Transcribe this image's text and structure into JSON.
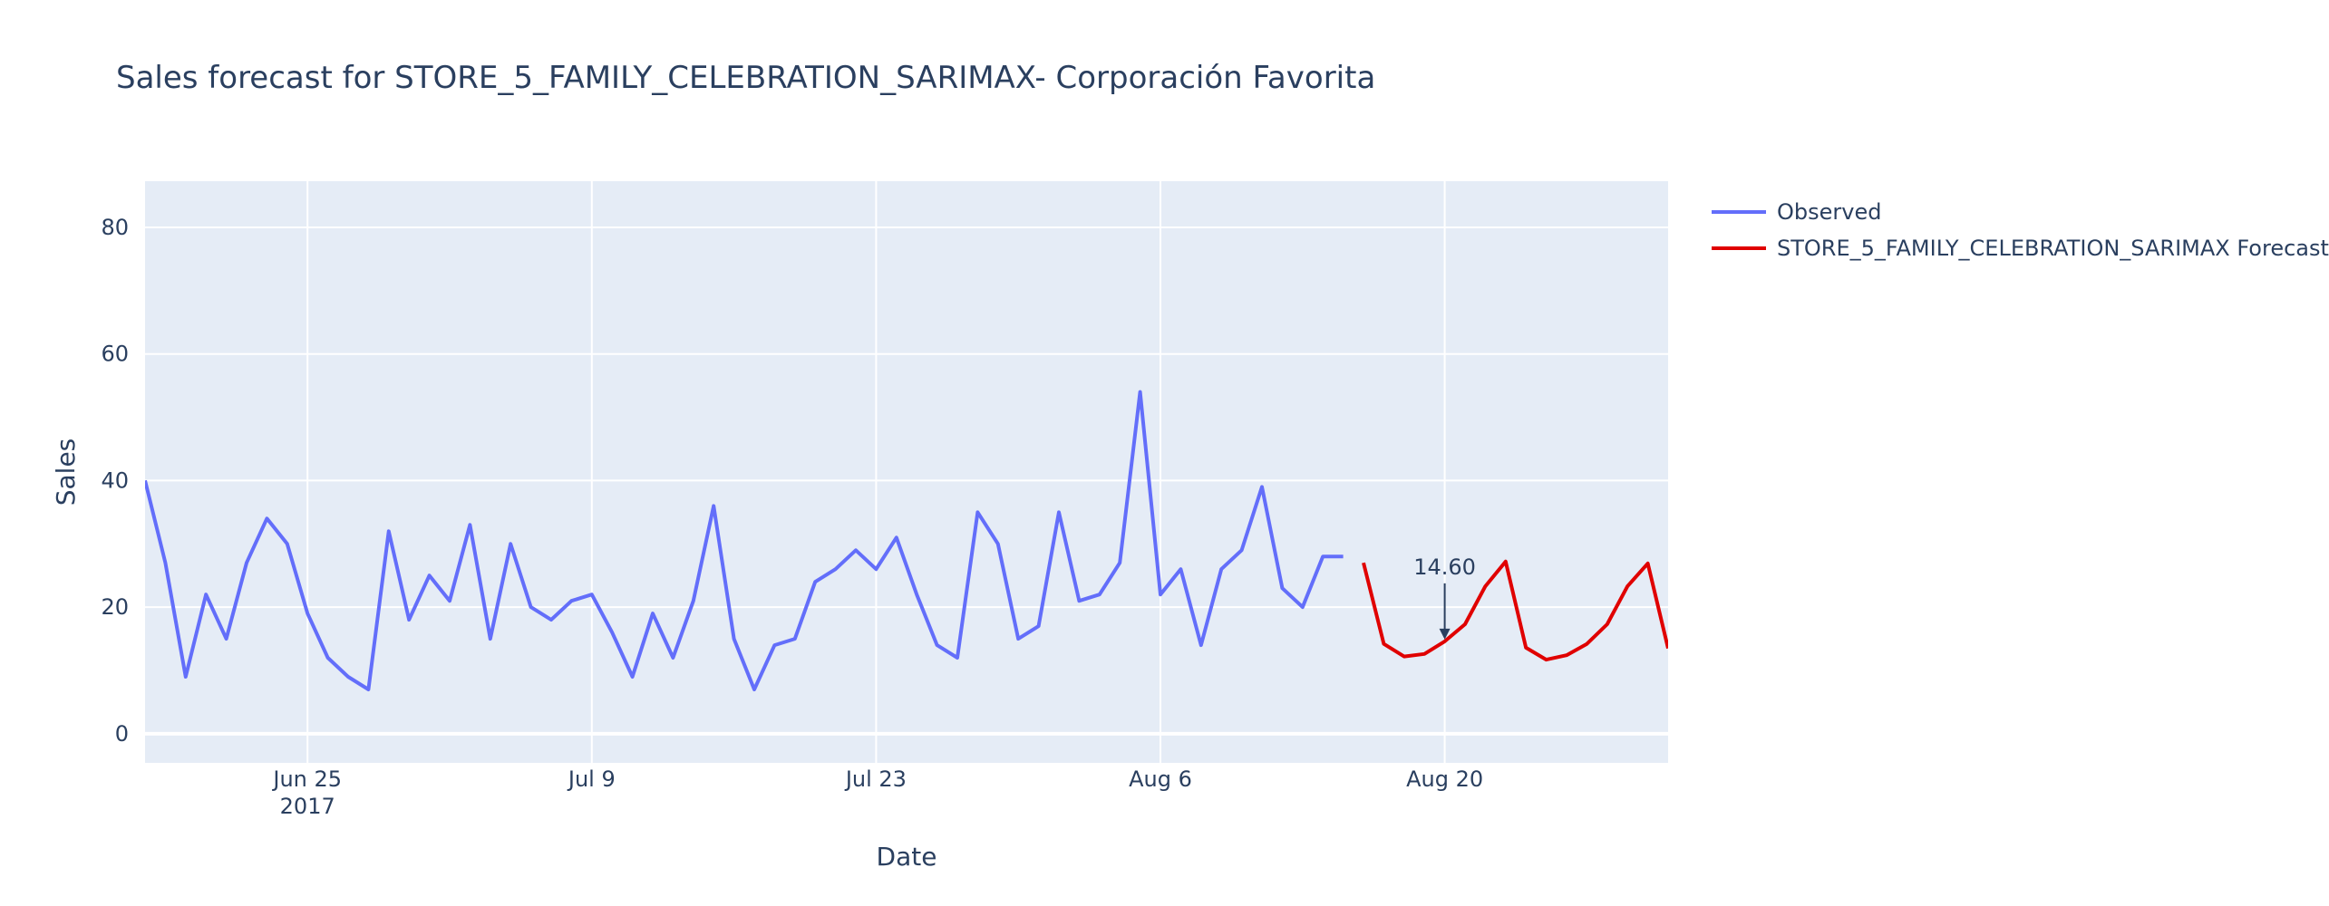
{
  "chart_data": {
    "type": "line",
    "title": "Sales forecast for STORE_5_FAMILY_CELEBRATION_SARIMAX- Corporación Favorita",
    "xlabel": "Date",
    "ylabel": "Sales",
    "ylim": [
      -4.6,
      87.3
    ],
    "xlim": [
      "2017-06-17",
      "2017-08-31"
    ],
    "grid": true,
    "legend_position": "right",
    "x_ticks": [
      {
        "date": "2017-06-25",
        "label": "Jun 25",
        "sublabel": "2017"
      },
      {
        "date": "2017-07-09",
        "label": "Jul 9"
      },
      {
        "date": "2017-07-23",
        "label": "Jul 23"
      },
      {
        "date": "2017-08-06",
        "label": "Aug 6"
      },
      {
        "date": "2017-08-20",
        "label": "Aug 20"
      }
    ],
    "y_ticks": [
      0,
      20,
      40,
      60,
      80
    ],
    "series": [
      {
        "name": "Observed",
        "color": "#636efa",
        "start_date": "2017-06-17",
        "values": [
          40,
          27,
          9,
          22,
          15,
          27,
          34,
          30,
          19,
          12,
          9,
          7,
          32,
          18,
          25,
          21,
          33,
          15,
          30,
          20,
          18,
          21,
          22,
          16,
          9,
          19,
          12,
          21,
          36,
          15,
          7,
          14,
          15,
          24,
          26,
          29,
          26,
          31,
          22,
          14,
          12,
          35,
          30,
          15,
          17,
          35,
          21,
          22,
          27,
          54,
          22,
          26,
          14,
          26,
          29,
          39,
          23,
          20,
          28,
          28
        ]
      },
      {
        "name": "STORE_5_FAMILY_CELEBRATION_SARIMAX Forecast",
        "color": "#e00000",
        "start_date": "2017-08-16",
        "values": [
          27,
          14.2,
          12.2,
          12.6,
          14.6,
          17.3,
          23.3,
          27.2,
          13.6,
          11.7,
          12.4,
          14.2,
          17.3,
          23.3,
          26.9,
          13.5
        ]
      }
    ],
    "annotations": [
      {
        "date": "2017-08-20",
        "y": 14.6,
        "text": "14.60"
      }
    ]
  }
}
